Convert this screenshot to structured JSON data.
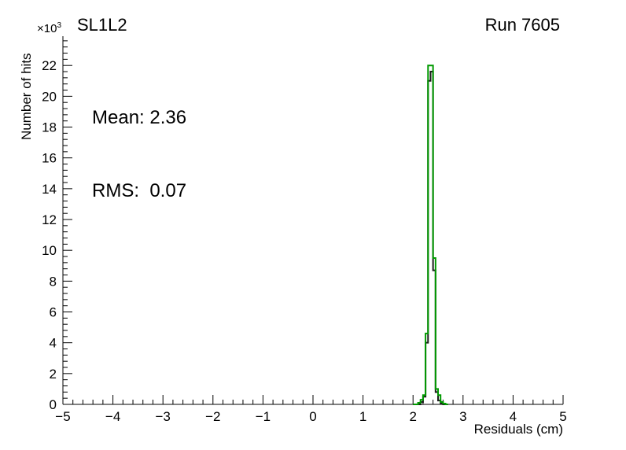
{
  "header": {
    "title": "SL1L2",
    "run_label": "Run 7605"
  },
  "stats": {
    "mean_label": "Mean: 2.36",
    "rms_label": "RMS:  0.07"
  },
  "axes": {
    "y_title": "Number of hits",
    "y_multiplier_base": "×10",
    "y_multiplier_exp": "3",
    "x_title": "Residuals (cm)"
  },
  "chart_data": {
    "type": "line",
    "subtype": "step-histogram",
    "title": "SL1L2",
    "xlabel": "Residuals (cm)",
    "ylabel": "Number of hits",
    "y_unit_scale": "×10^3",
    "xlim": [
      -5,
      5
    ],
    "ylim": [
      0,
      23.9
    ],
    "grid": false,
    "legend": "none",
    "x_major_ticks": [
      -5,
      -4,
      -3,
      -2,
      -1,
      0,
      1,
      2,
      3,
      4,
      5
    ],
    "x_tick_labels": [
      "−5",
      "−4",
      "−3",
      "−2",
      "−1",
      "0",
      "1",
      "2",
      "3",
      "4",
      "5"
    ],
    "y_major_ticks": [
      0,
      2,
      4,
      6,
      8,
      10,
      12,
      14,
      16,
      18,
      20,
      22
    ],
    "y_tick_labels": [
      "0",
      "2",
      "4",
      "6",
      "8",
      "10",
      "12",
      "14",
      "16",
      "18",
      "20",
      "22"
    ],
    "x_minor_step": 0.2,
    "y_minor_step": 0.4,
    "bin_width": 0.05,
    "series": [
      {
        "name": "black-histogram",
        "color": "#1c1c1c",
        "bin_start": 2.0,
        "values": [
          0,
          0,
          0,
          0.15,
          0.5,
          4.0,
          21.0,
          21.6,
          8.7,
          0.8,
          0.25,
          0.05,
          0,
          0
        ]
      },
      {
        "name": "green-histogram",
        "color": "#009900",
        "bin_start": 2.0,
        "values": [
          0,
          0,
          0.1,
          0.3,
          0.6,
          4.6,
          22.0,
          22.0,
          9.5,
          1.0,
          0.6,
          0.15,
          0.05,
          0
        ]
      }
    ],
    "stats": {
      "mean": 2.36,
      "rms": 0.07
    }
  }
}
